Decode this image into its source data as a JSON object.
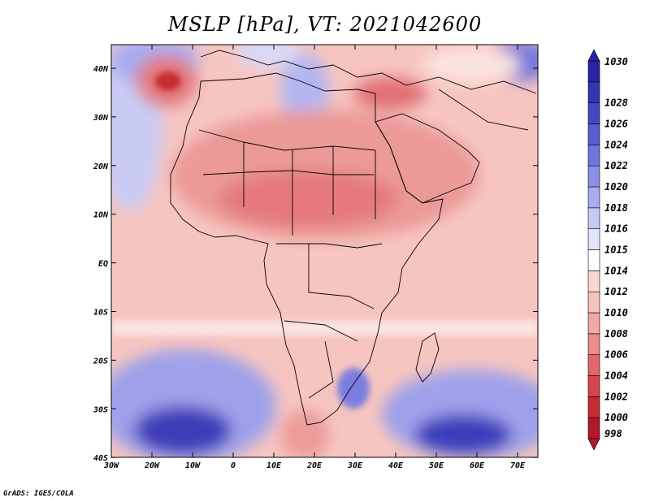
{
  "title": "MSLP [hPa], VT: 2021042600",
  "credit": "GrADS: IGES/COLA",
  "axes": {
    "x_ticks": [
      "30W",
      "20W",
      "10W",
      "0",
      "10E",
      "20E",
      "30E",
      "40E",
      "50E",
      "60E",
      "70E"
    ],
    "y_ticks": [
      "40N",
      "30N",
      "20N",
      "10N",
      "EQ",
      "10S",
      "20S",
      "30S",
      "40S"
    ]
  },
  "colorbar": {
    "labels": [
      "998",
      "1000",
      "1002",
      "1004",
      "1006",
      "1008",
      "1010",
      "1012",
      "1014",
      "1015",
      "1016",
      "1018",
      "1020",
      "1022",
      "1024",
      "1026",
      "1028",
      "1030"
    ],
    "colors": [
      "#b2182b",
      "#c62a35",
      "#d9434c",
      "#e3666c",
      "#eb8b8b",
      "#f2a9a6",
      "#f6c2bd",
      "#fad9d4",
      "#ffffff",
      "#e2e4fb",
      "#c6c9f5",
      "#a8acee",
      "#8b8fe6",
      "#7074dc",
      "#5a5ccf",
      "#4647c2",
      "#3534b3",
      "#2a22a0"
    ]
  }
}
